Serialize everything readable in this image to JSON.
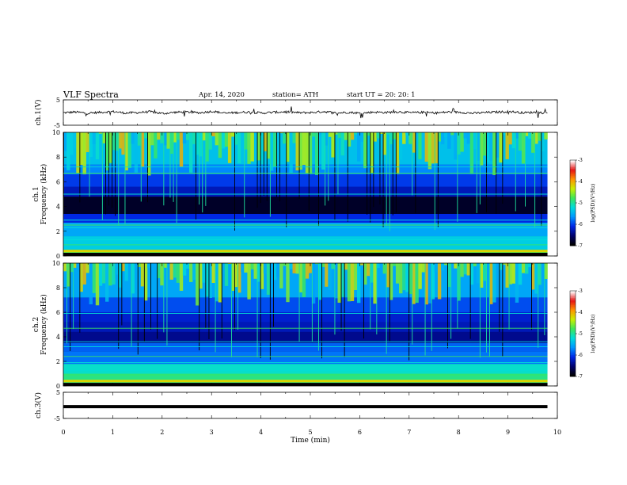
{
  "header": {
    "title": "VLF  Spectra",
    "date": "Apr. 14, 2020",
    "station": "station= ATH",
    "start": "start  UT  =    20: 20: 1"
  },
  "chart_data": [
    {
      "type": "line",
      "ylabel": "ch.1(V)",
      "ylim": [
        -5,
        5
      ],
      "yticks": [
        "5",
        "-5"
      ],
      "series": [
        {
          "values": [
            -0.1,
            0.2,
            -0.3,
            0.1,
            0.4,
            -0.2,
            0.0,
            0.3,
            -0.4,
            0.1,
            0.2,
            -0.1,
            0.5,
            -0.3,
            0.0,
            0.2,
            -0.2,
            0.1,
            0.3,
            -0.1,
            0.0,
            0.4,
            -0.2,
            0.1,
            -0.3,
            0.2,
            0.0,
            0.3,
            -0.1,
            0.1,
            -0.2,
            0.2,
            0.1,
            -0.3,
            0.0,
            0.2,
            0.4,
            -0.1,
            0.1,
            -0.2
          ]
        }
      ]
    },
    {
      "type": "heatmap",
      "ylabel": "ch.1",
      "ylabel2": "Frequency  (kHz)",
      "ylim": [
        0,
        10
      ],
      "yticks": [
        "0",
        "2",
        "4",
        "6",
        "8",
        "10"
      ],
      "colorbar": {
        "label": "log(PSD)(V²/Hz)",
        "ticks": [
          "-3",
          "-4",
          "-5",
          "-6",
          "-7"
        ],
        "range": [
          -7,
          -3
        ]
      }
    },
    {
      "type": "heatmap",
      "ylabel": "ch.2",
      "ylabel2": "Frequency  (kHz)",
      "ylim": [
        0,
        10
      ],
      "yticks": [
        "0",
        "2",
        "4",
        "6",
        "8",
        "10"
      ],
      "colorbar": {
        "label": "log(PSD)(V²/Hz)",
        "ticks": [
          "-3",
          "-4",
          "-5",
          "-6",
          "-7"
        ],
        "range": [
          -7,
          -3
        ]
      }
    },
    {
      "type": "line",
      "ylabel": "ch.3(V)",
      "ylim": [
        -5,
        5
      ],
      "yticks": [
        "5",
        "-5"
      ],
      "series": [
        {
          "values": [
            -0.5,
            -0.5
          ]
        }
      ]
    }
  ],
  "xaxis": {
    "label": "Time  (min)",
    "range": [
      0,
      10
    ],
    "ticks": [
      "0",
      "1",
      "2",
      "3",
      "4",
      "5",
      "6",
      "7",
      "8",
      "9",
      "10"
    ],
    "data_end": 9.8
  }
}
